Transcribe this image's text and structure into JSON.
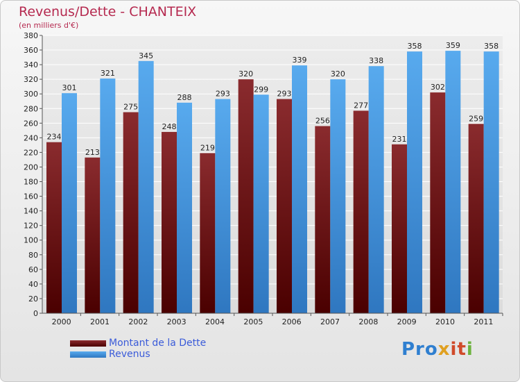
{
  "chart_data": {
    "type": "bar",
    "title": "Revenus/Dette - CHANTEIX",
    "subtitle": "(en milliers d'€)",
    "categories": [
      "2000",
      "2001",
      "2002",
      "2003",
      "2004",
      "2005",
      "2006",
      "2007",
      "2008",
      "2009",
      "2010",
      "2011"
    ],
    "series": [
      {
        "name": "Montant de la Dette",
        "color": "#7a1f22",
        "values": [
          234,
          213,
          275,
          248,
          219,
          320,
          293,
          256,
          277,
          231,
          302,
          259
        ]
      },
      {
        "name": "Revenus",
        "color": "#4b9fe0",
        "values": [
          301,
          321,
          345,
          288,
          293,
          299,
          339,
          320,
          338,
          358,
          359,
          358
        ]
      }
    ],
    "ylim": [
      0,
      380
    ],
    "ytick_step": 20,
    "grid": true,
    "legend_position": "bottom-left"
  },
  "logo": {
    "text": "Proxiti",
    "parts": [
      "Pro",
      "x",
      "it",
      "i"
    ]
  }
}
